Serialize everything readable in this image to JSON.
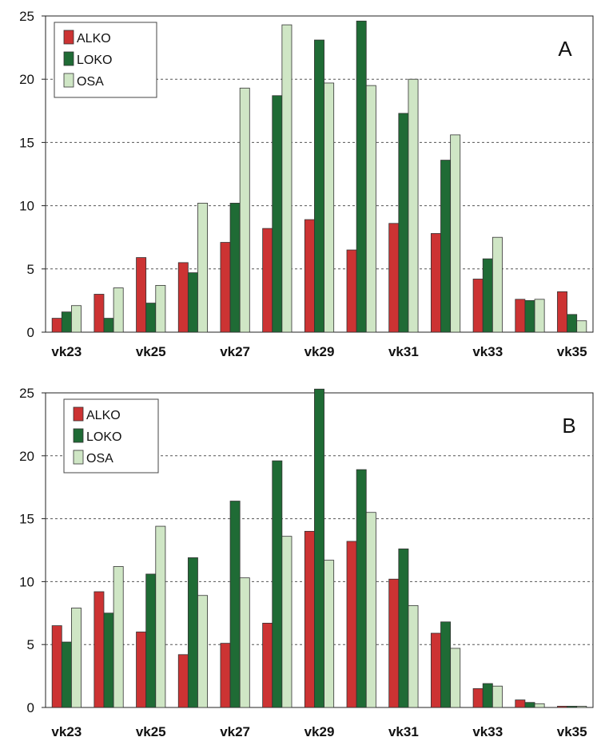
{
  "chart_data": [
    {
      "type": "bar",
      "panel_label": "A",
      "categories": [
        "vk23",
        "vk24",
        "vk25",
        "vk26",
        "vk27",
        "vk28",
        "vk29",
        "vk30",
        "vk31",
        "vk32",
        "vk33",
        "vk34",
        "vk35"
      ],
      "category_labels": [
        "vk23",
        "",
        "vk25",
        "",
        "vk27",
        "",
        "vk29",
        "",
        "vk31",
        "",
        "vk33",
        "",
        "vk35"
      ],
      "series": [
        {
          "name": "ALKO",
          "color": "#cc3333",
          "values": [
            1.1,
            3.0,
            5.9,
            5.5,
            7.1,
            8.2,
            8.9,
            6.5,
            8.6,
            7.8,
            4.2,
            2.6,
            3.2
          ]
        },
        {
          "name": "LOKO",
          "color": "#1f6b35",
          "values": [
            1.6,
            1.1,
            2.3,
            4.7,
            10.2,
            18.7,
            23.1,
            24.6,
            17.3,
            13.6,
            5.8,
            2.5,
            1.4
          ]
        },
        {
          "name": "OSA",
          "color": "#cfe6c5",
          "values": [
            2.1,
            3.5,
            3.7,
            10.2,
            19.3,
            24.3,
            19.7,
            19.5,
            20.0,
            15.6,
            7.5,
            2.6,
            0.9
          ]
        }
      ],
      "yticks": [
        0,
        5,
        10,
        15,
        20,
        25
      ],
      "ylim": [
        0,
        25
      ],
      "legend_position": "top-left",
      "grid": true
    },
    {
      "type": "bar",
      "panel_label": "B",
      "categories": [
        "vk23",
        "vk24",
        "vk25",
        "vk26",
        "vk27",
        "vk28",
        "vk29",
        "vk30",
        "vk31",
        "vk32",
        "vk33",
        "vk34",
        "vk35"
      ],
      "category_labels": [
        "vk23",
        "",
        "vk25",
        "",
        "vk27",
        "",
        "vk29",
        "",
        "vk31",
        "",
        "vk33",
        "",
        "vk35"
      ],
      "series": [
        {
          "name": "ALKO",
          "color": "#cc3333",
          "values": [
            6.5,
            9.2,
            6.0,
            4.2,
            5.1,
            6.7,
            14.0,
            13.2,
            10.2,
            5.9,
            1.5,
            0.6,
            0.1
          ]
        },
        {
          "name": "LOKO",
          "color": "#1f6b35",
          "values": [
            5.2,
            7.5,
            10.6,
            11.9,
            16.4,
            19.6,
            25.3,
            18.9,
            12.6,
            6.8,
            1.9,
            0.4,
            0.1
          ]
        },
        {
          "name": "OSA",
          "color": "#cfe6c5",
          "values": [
            7.9,
            11.2,
            14.4,
            8.9,
            10.3,
            13.6,
            11.7,
            15.5,
            8.1,
            4.7,
            1.7,
            0.3,
            0.1
          ]
        }
      ],
      "yticks": [
        0,
        5,
        10,
        15,
        20,
        25
      ],
      "ylim": [
        0,
        25
      ],
      "legend_position": "top-left",
      "grid": true
    }
  ]
}
